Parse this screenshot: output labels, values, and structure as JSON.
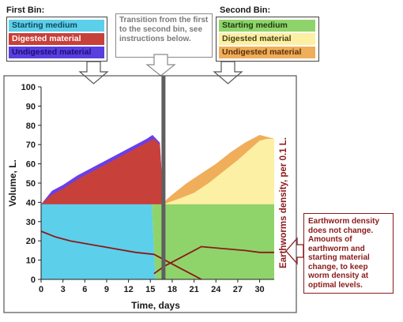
{
  "chart_data": {
    "type": "area",
    "xlabel": "Time, days",
    "ylabel": "Volume, L.",
    "y2label": "Earthworms density, per 0.1 L.",
    "xlim": [
      0,
      32
    ],
    "ylim": [
      0,
      100
    ],
    "xticks": [
      "0",
      "3",
      "6",
      "9",
      "12",
      "15",
      "18",
      "21",
      "24",
      "27",
      "30"
    ],
    "xtick_values": [
      0,
      3,
      6,
      9,
      12,
      15,
      18,
      21,
      24,
      27,
      30
    ],
    "yticks": [
      "0",
      "10",
      "20",
      "30",
      "40",
      "50",
      "60",
      "70",
      "80",
      "90",
      "100"
    ],
    "ytick_values": [
      0,
      10,
      20,
      30,
      40,
      50,
      60,
      70,
      80,
      90,
      100
    ],
    "transition_day": 16.8,
    "first_bin": {
      "title": "First Bin:",
      "legend": [
        "Starting medium",
        "Digested material",
        "Undigested material"
      ],
      "colors": {
        "starting": "#5ccfea",
        "digested": "#c8403a",
        "undigested": "#6a3fe8"
      },
      "starting_medium": [
        [
          0,
          39
        ],
        [
          15.2,
          39
        ],
        [
          15.7,
          0
        ],
        [
          0,
          0
        ]
      ],
      "digested_top": [
        [
          0,
          39
        ],
        [
          1.5,
          44
        ],
        [
          3,
          47
        ],
        [
          5,
          52
        ],
        [
          7,
          56
        ],
        [
          9,
          60
        ],
        [
          11,
          64
        ],
        [
          13,
          68
        ],
        [
          14.5,
          71
        ],
        [
          15.5,
          73
        ],
        [
          16.3,
          70
        ],
        [
          16.8,
          39
        ]
      ],
      "undigested_top": [
        [
          0,
          39
        ],
        [
          1.5,
          46
        ],
        [
          3,
          49
        ],
        [
          5,
          54
        ],
        [
          7,
          58
        ],
        [
          9,
          62
        ],
        [
          11,
          66
        ],
        [
          13,
          70
        ],
        [
          14.5,
          73
        ],
        [
          15.3,
          75
        ],
        [
          16.3,
          71
        ],
        [
          16.8,
          39
        ]
      ]
    },
    "second_bin": {
      "title": "Second Bin:",
      "legend": [
        "Starting medium",
        "Digested material",
        "Undigested material"
      ],
      "colors": {
        "starting": "#8ed46a",
        "digested": "#fbf0a4",
        "undigested": "#f0ad5a"
      },
      "undigested_top": [
        [
          16.8,
          40
        ],
        [
          18,
          44
        ],
        [
          20,
          50
        ],
        [
          22,
          55
        ],
        [
          24,
          60
        ],
        [
          26,
          66
        ],
        [
          28,
          71
        ],
        [
          29.5,
          74
        ],
        [
          30,
          75
        ],
        [
          31,
          74
        ],
        [
          32,
          73
        ]
      ],
      "digested_top": [
        [
          16.8,
          39
        ],
        [
          19,
          42
        ],
        [
          21,
          45
        ],
        [
          23,
          50
        ],
        [
          25,
          56
        ],
        [
          27,
          62
        ],
        [
          28.5,
          67
        ],
        [
          30,
          72
        ],
        [
          31,
          73
        ],
        [
          32,
          73
        ]
      ]
    },
    "worm_density": {
      "color": "#8b1a1a",
      "first_bin": [
        [
          0,
          25
        ],
        [
          2,
          22
        ],
        [
          4,
          20
        ],
        [
          7,
          18
        ],
        [
          10,
          16
        ],
        [
          13,
          14
        ],
        [
          15.5,
          13
        ],
        [
          17,
          10
        ],
        [
          19,
          6
        ],
        [
          21,
          2
        ],
        [
          22,
          0
        ]
      ],
      "second_bin": [
        [
          15.5,
          3
        ],
        [
          17,
          7
        ],
        [
          19,
          11
        ],
        [
          21,
          15
        ],
        [
          22,
          17
        ],
        [
          25,
          16
        ],
        [
          28,
          15
        ],
        [
          30,
          14
        ],
        [
          32,
          14
        ]
      ]
    },
    "notes": {
      "transition": "Transition from the first to the second bin, see instructions below.",
      "density": "Earthworm density does not change. Amounts of earthworm and starting material change, to keep worm density at optimal levels."
    }
  }
}
